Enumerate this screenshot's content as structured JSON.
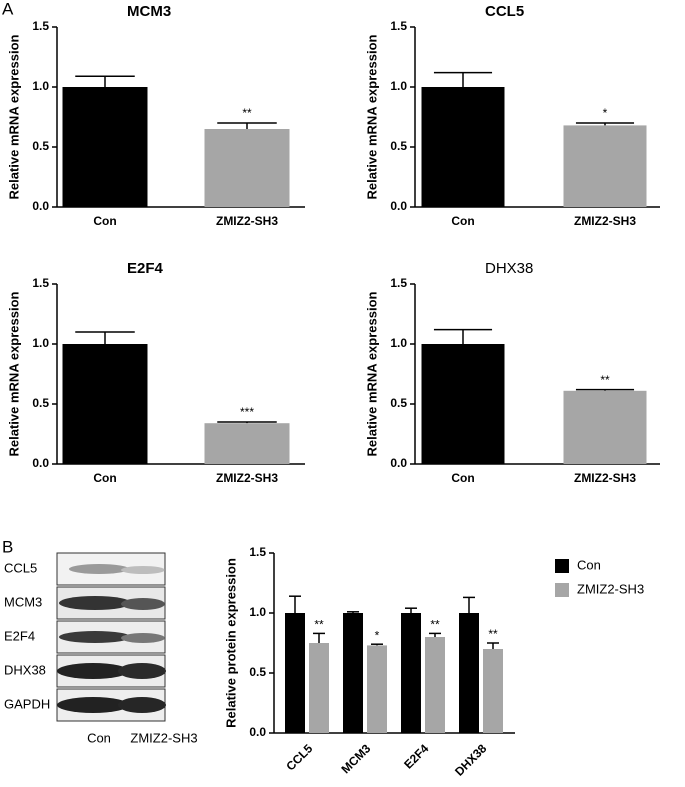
{
  "panels": [
    "A",
    "B"
  ],
  "blot": {
    "rows": [
      "CCL5",
      "MCM3",
      "E2F4",
      "DHX38",
      "GAPDH"
    ],
    "lanes": [
      "Con",
      "ZMIZ2-SH3"
    ]
  },
  "chart_data": [
    {
      "type": "bar",
      "title": "MCM3",
      "title_style": "bold",
      "y_label": "Relative mRNA expression",
      "categories": [
        "Con",
        "ZMIZ2-SH3"
      ],
      "series": [
        {
          "colors": [
            "#000000",
            "#a6a6a6"
          ],
          "values": [
            1.0,
            0.65
          ],
          "errors": [
            0.09,
            0.05
          ],
          "annotations": [
            null,
            "**"
          ]
        }
      ],
      "ylim": [
        0,
        1.5
      ],
      "yticks": [
        {
          "value": 0,
          "label": "0.0"
        },
        0.5,
        {
          "value": 1,
          "label": "1.0"
        },
        1.5
      ]
    },
    {
      "type": "bar",
      "title": "CCL5",
      "title_style": "bold",
      "y_label": "Relative mRNA expression",
      "categories": [
        "Con",
        "ZMIZ2-SH3"
      ],
      "series": [
        {
          "colors": [
            "#000000",
            "#a6a6a6"
          ],
          "values": [
            1.0,
            0.68
          ],
          "errors": [
            0.12,
            0.02
          ],
          "annotations": [
            null,
            "*"
          ]
        }
      ],
      "ylim": [
        0,
        1.5
      ],
      "yticks": [
        {
          "value": 0,
          "label": "0.0"
        },
        0.5,
        {
          "value": 1,
          "label": "1.0"
        },
        1.5
      ]
    },
    {
      "type": "bar",
      "title": "E2F4",
      "title_style": "bold",
      "y_label": "Relative mRNA expression",
      "categories": [
        "Con",
        "ZMIZ2-SH3"
      ],
      "series": [
        {
          "colors": [
            "#000000",
            "#a6a6a6"
          ],
          "values": [
            1.0,
            0.34
          ],
          "errors": [
            0.1,
            0.01
          ],
          "annotations": [
            null,
            "***"
          ]
        }
      ],
      "ylim": [
        0,
        1.5
      ],
      "yticks": [
        {
          "value": 0,
          "label": "0.0"
        },
        0.5,
        {
          "value": 1,
          "label": "1.0"
        },
        1.5
      ]
    },
    {
      "type": "bar",
      "title": "DHX38",
      "title_style": "normal",
      "y_label": "Relative mRNA expression",
      "categories": [
        "Con",
        "ZMIZ2-SH3"
      ],
      "series": [
        {
          "colors": [
            "#000000",
            "#a6a6a6"
          ],
          "values": [
            1.0,
            0.61
          ],
          "errors": [
            0.12,
            0.01
          ],
          "annotations": [
            null,
            "**"
          ]
        }
      ],
      "ylim": [
        0,
        1.5
      ],
      "yticks": [
        {
          "value": 0,
          "label": "0.0"
        },
        0.5,
        {
          "value": 1,
          "label": "1.0"
        },
        1.5
      ]
    },
    {
      "type": "grouped_bar",
      "y_label": "Relative protein expression",
      "legend": "right",
      "categories": [
        "CCL5",
        "MCM3",
        "E2F4",
        "DHX38"
      ],
      "series": [
        {
          "name": "Con",
          "color": "#000000",
          "values": [
            1.0,
            1.0,
            1.0,
            1.0
          ],
          "errors": [
            0.14,
            0.01,
            0.04,
            0.13
          ]
        },
        {
          "name": "ZMIZ2-SH3",
          "color": "#a6a6a6",
          "values": [
            0.75,
            0.73,
            0.8,
            0.7
          ],
          "errors": [
            0.08,
            0.01,
            0.03,
            0.05
          ],
          "annotations": [
            "**",
            "*",
            "**",
            "**"
          ]
        }
      ],
      "ylim": [
        0,
        1.5
      ],
      "yticks": [
        {
          "value": 0,
          "label": "0.0"
        },
        {
          "value": 0.5,
          "label": "0.5"
        },
        {
          "value": 1,
          "label": "1.0"
        },
        {
          "value": 1.5,
          "label": "1.5"
        }
      ]
    }
  ]
}
